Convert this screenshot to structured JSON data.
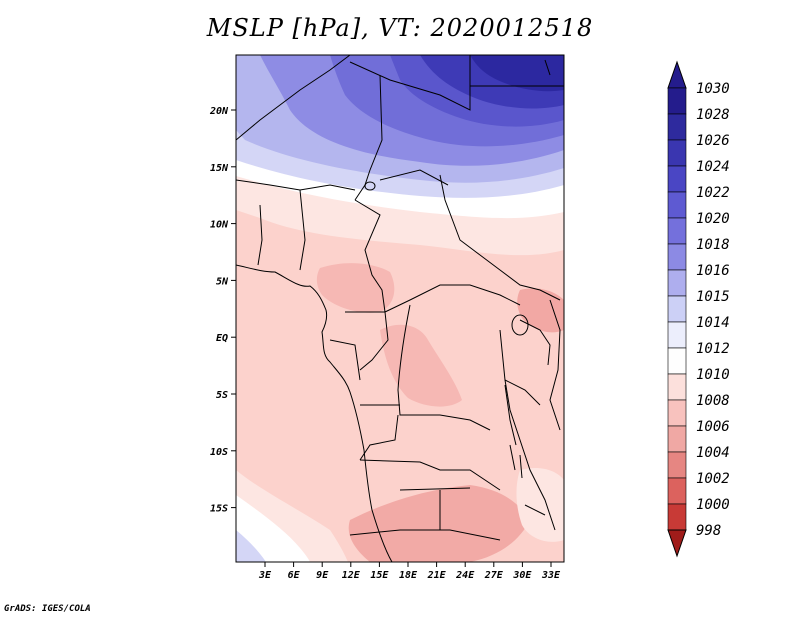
{
  "title": "MSLP [hPa], VT: 2020012518",
  "credit": "GrADS: IGES/COLA",
  "map": {
    "variable": "MSLP",
    "units": "hPa",
    "valid_time": "2020012518",
    "lat_labels": [
      "20N",
      "15N",
      "10N",
      "5N",
      "EQ",
      "5S",
      "10S",
      "15S"
    ],
    "lon_labels": [
      "3E",
      "6E",
      "9E",
      "12E",
      "15E",
      "18E",
      "21E",
      "24E",
      "27E",
      "30E",
      "33E"
    ]
  },
  "colorbar": {
    "labels": [
      "1030",
      "1028",
      "1026",
      "1024",
      "1022",
      "1020",
      "1018",
      "1016",
      "1015",
      "1014",
      "1012",
      "1010",
      "1008",
      "1006",
      "1004",
      "1002",
      "1000",
      "998"
    ],
    "colors": [
      "#241c8c",
      "#2e2a9e",
      "#3a36b0",
      "#4a46c4",
      "#5e5ad2",
      "#7470dc",
      "#8c8ae4",
      "#aeaeee",
      "#ccd0f6",
      "#eceefc",
      "#fefefe",
      "#fce0dc",
      "#f8c2be",
      "#f0a8a4",
      "#e68682",
      "#dc625e",
      "#c83a36",
      "#a01c1a"
    ],
    "tip_top": "#241c8c",
    "tip_bottom": "#a01c1a"
  }
}
